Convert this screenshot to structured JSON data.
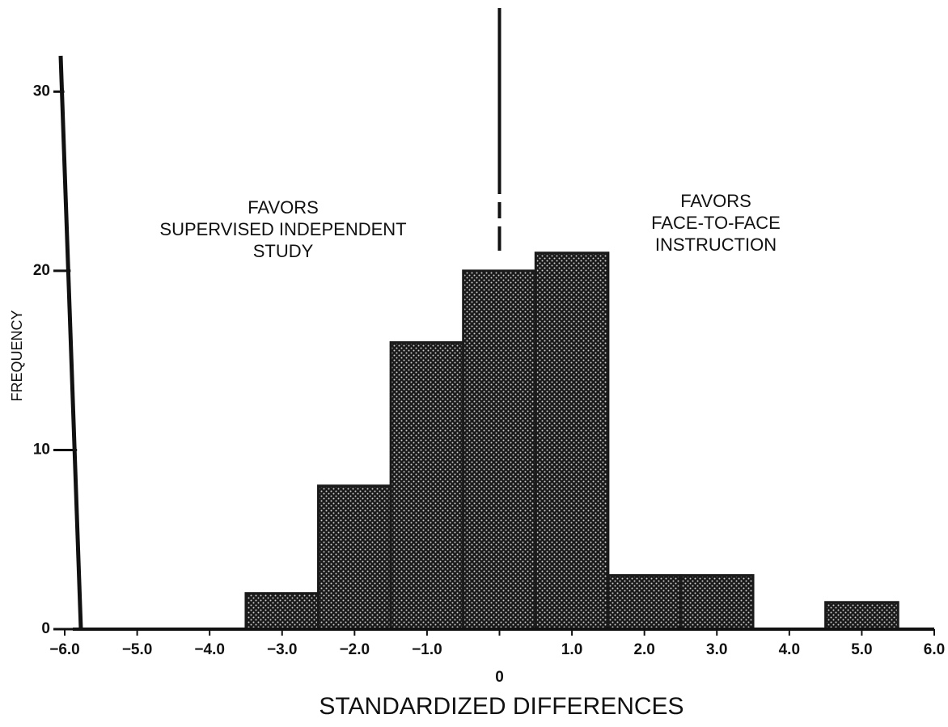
{
  "chart_data": {
    "type": "histogram",
    "xlabel": "STANDARDIZED DIFFERENCES",
    "ylabel": "FREQUENCY",
    "annotations": [
      {
        "lines": [
          "FAVORS",
          "SUPERVISED INDEPENDENT",
          "STUDY"
        ]
      },
      {
        "lines": [
          "FAVORS",
          "FACE-TO-FACE",
          "INSTRUCTION"
        ]
      }
    ],
    "bins": [
      -3.5,
      -2.5,
      -1.5,
      -0.5,
      0.5,
      1.5,
      2.5,
      3.5,
      4.5,
      5.5
    ],
    "counts": [
      2,
      8,
      16,
      20,
      21,
      3,
      3,
      0,
      1.5
    ],
    "color": "#1a1a1a",
    "xlim": [
      -6,
      6
    ],
    "xticks": [
      {
        "value": -6,
        "label": "−6.0"
      },
      {
        "value": -5,
        "label": "−5.0"
      },
      {
        "value": -4,
        "label": "−4.0"
      },
      {
        "value": -3,
        "label": "−3.0"
      },
      {
        "value": -2,
        "label": "−2.0"
      },
      {
        "value": -1,
        "label": "−1.0"
      },
      0,
      {
        "value": 1,
        "label": "1.0"
      },
      {
        "value": 2,
        "label": "2.0"
      },
      {
        "value": 3,
        "label": "3.0"
      },
      {
        "value": 4,
        "label": "4.0"
      },
      {
        "value": 5,
        "label": "5.0"
      },
      {
        "value": 6,
        "label": "6.0"
      }
    ],
    "ylim": [
      0,
      32
    ],
    "yticks": [
      0,
      10,
      20,
      30
    ],
    "grid": false
  }
}
